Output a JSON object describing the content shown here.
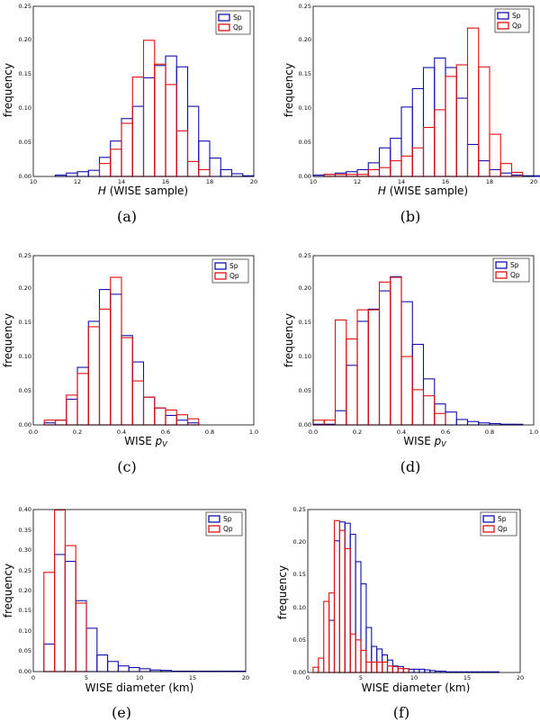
{
  "colors": {
    "sp": "#1010b0",
    "qp": "#e01010"
  },
  "charts": [
    {
      "panel": "(a)",
      "xlabel": "H (WISE sample)",
      "ylabel": "frequency",
      "legend": [
        "Sp",
        "Qp"
      ],
      "xticks": [
        "10",
        "12",
        "14",
        "16",
        "18",
        "20"
      ],
      "yticks": [
        "0.00",
        "0.05",
        "0.10",
        "0.15",
        "0.20",
        "0.25"
      ]
    },
    {
      "panel": "(b)",
      "xlabel": "H (WISE sample)",
      "ylabel": "frequency",
      "legend": [
        "Sp",
        "Qp"
      ],
      "xticks": [
        "10",
        "12",
        "14",
        "16",
        "18",
        "20"
      ],
      "yticks": [
        "0.00",
        "0.05",
        "0.10",
        "0.15",
        "0.20",
        "0.25"
      ]
    },
    {
      "panel": "(c)",
      "xlabel": "WISE pV",
      "ylabel": "frequency",
      "legend": [
        "Sp",
        "Qp"
      ],
      "xticks": [
        "0.0",
        "0.2",
        "0.4",
        "0.6",
        "0.8",
        "1.0"
      ],
      "yticks": [
        "0.00",
        "0.05",
        "0.10",
        "0.15",
        "0.20",
        "0.25"
      ]
    },
    {
      "panel": "(d)",
      "xlabel": "WISE pV",
      "ylabel": "frequency",
      "legend": [
        "Sp",
        "Qp"
      ],
      "xticks": [
        "0.0",
        "0.2",
        "0.4",
        "0.6",
        "0.8",
        "1.0"
      ],
      "yticks": [
        "0.00",
        "0.05",
        "0.10",
        "0.15",
        "0.20",
        "0.25"
      ]
    },
    {
      "panel": "(e)",
      "xlabel": "WISE diameter (km)",
      "ylabel": "frequency",
      "legend": [
        "Sp",
        "Qp"
      ],
      "xticks": [
        "0",
        "5",
        "10",
        "15",
        "20"
      ],
      "yticks": [
        "0.00",
        "0.05",
        "0.10",
        "0.15",
        "0.20",
        "0.25",
        "0.30",
        "0.35",
        "0.40"
      ]
    },
    {
      "panel": "(f)",
      "xlabel": "WISE diameter (km)",
      "ylabel": "frequency",
      "legend": [
        "Sp",
        "Qp"
      ],
      "xticks": [
        "0",
        "5",
        "10",
        "15",
        "20"
      ],
      "yticks": [
        "0.00",
        "0.05",
        "0.10",
        "0.15",
        "0.20",
        "0.25"
      ]
    }
  ],
  "chart_data": [
    {
      "type": "bar",
      "panel": "a",
      "bar_style": "step-outline",
      "xlabel": "H (WISE sample)",
      "ylabel": "frequency",
      "xlim": [
        10,
        20
      ],
      "ylim": [
        0,
        0.25
      ],
      "bin_width": 0.5,
      "series": [
        {
          "name": "Sp",
          "bin_start": 11.0,
          "values": [
            0.002,
            0.005,
            0.007,
            0.009,
            0.028,
            0.052,
            0.085,
            0.103,
            0.145,
            0.163,
            0.177,
            0.161,
            0.103,
            0.052,
            0.027,
            0.01,
            0.004,
            0.001
          ]
        },
        {
          "name": "Qp",
          "bin_start": 13.0,
          "values": [
            0.019,
            0.04,
            0.078,
            0.146,
            0.2,
            0.165,
            0.135,
            0.067,
            0.022,
            0.01
          ]
        }
      ]
    },
    {
      "type": "bar",
      "panel": "b",
      "bar_style": "step-outline",
      "xlabel": "H (WISE sample)",
      "ylabel": "frequency",
      "xlim": [
        10,
        20
      ],
      "ylim": [
        0,
        0.25
      ],
      "bin_width": 0.5,
      "series": [
        {
          "name": "Sp",
          "bin_start": 10.0,
          "values": [
            0.002,
            0.003,
            0.005,
            0.007,
            0.01,
            0.02,
            0.042,
            0.056,
            0.102,
            0.129,
            0.16,
            0.174,
            0.16,
            0.115,
            0.047,
            0.023,
            0.01,
            0.005,
            0.002,
            0.001,
            0.001,
            0.001,
            0.001,
            0.001,
            0.001,
            0.001,
            0.001,
            0.001,
            0.001,
            0.001
          ]
        },
        {
          "name": "Qp",
          "bin_start": 10.5,
          "values": [
            0.003,
            0.003,
            0.003,
            0.003,
            0.01,
            0.013,
            0.023,
            0.03,
            0.042,
            0.072,
            0.098,
            0.147,
            0.164,
            0.218,
            0.161,
            0.062,
            0.019,
            0.006
          ]
        }
      ]
    },
    {
      "type": "bar",
      "panel": "c",
      "bar_style": "step-outline",
      "xlabel": "WISE pV",
      "ylabel": "frequency",
      "xlim": [
        0,
        1
      ],
      "ylim": [
        0,
        0.25
      ],
      "bin_width": 0.05,
      "series": [
        {
          "name": "Sp",
          "bin_start": 0.05,
          "values": [
            0.003,
            0.007,
            0.038,
            0.085,
            0.153,
            0.2,
            0.193,
            0.132,
            0.093,
            0.041,
            0.025,
            0.014,
            0.007,
            0.003
          ]
        },
        {
          "name": "Qp",
          "bin_start": 0.05,
          "values": [
            0.007,
            0.007,
            0.044,
            0.076,
            0.145,
            0.171,
            0.218,
            0.129,
            0.065,
            0.041,
            0.025,
            0.022,
            0.015,
            0.009
          ]
        }
      ]
    },
    {
      "type": "bar",
      "panel": "d",
      "bar_style": "step-outline",
      "xlabel": "WISE pV",
      "ylabel": "frequency",
      "xlim": [
        0,
        1
      ],
      "ylim": [
        0,
        0.25
      ],
      "bin_width": 0.05,
      "series": [
        {
          "name": "Sp",
          "bin_start": 0.0,
          "values": [
            0.001,
            0.001,
            0.021,
            0.088,
            0.153,
            0.171,
            0.198,
            0.219,
            0.182,
            0.119,
            0.068,
            0.031,
            0.019,
            0.008,
            0.005,
            0.003,
            0.002,
            0.001,
            0.001
          ]
        },
        {
          "name": "Qp",
          "bin_start": 0.0,
          "values": [
            0.007,
            0.007,
            0.155,
            0.127,
            0.17,
            0.17,
            0.211,
            0.218,
            0.101,
            0.052,
            0.043,
            0.017
          ]
        }
      ]
    },
    {
      "type": "bar",
      "panel": "e",
      "bar_style": "step-outline",
      "xlabel": "WISE diameter (km)",
      "ylabel": "frequency",
      "xlim": [
        0,
        20
      ],
      "ylim": [
        0,
        0.4
      ],
      "bin_width": 1,
      "series": [
        {
          "name": "Sp",
          "bin_start": 1,
          "values": [
            0.068,
            0.289,
            0.272,
            0.175,
            0.107,
            0.041,
            0.025,
            0.014,
            0.01,
            0.007,
            0.004,
            0.003,
            0.001,
            0.001,
            0.001,
            0.001,
            0.001,
            0.001,
            0.001
          ]
        },
        {
          "name": "Qp",
          "bin_start": 1,
          "values": [
            0.245,
            0.399,
            0.311,
            0.169
          ]
        }
      ]
    },
    {
      "type": "bar",
      "panel": "f",
      "bar_style": "step-outline",
      "xlabel": "WISE diameter (km)",
      "ylabel": "frequency",
      "xlim": [
        0,
        20
      ],
      "ylim": [
        0,
        0.25
      ],
      "bin_width": 0.5,
      "series": [
        {
          "name": "Sp",
          "bin_start": 2.0,
          "values": [
            0.08,
            0.202,
            0.231,
            0.229,
            0.212,
            0.17,
            0.136,
            0.069,
            0.04,
            0.036,
            0.027,
            0.019,
            0.01,
            0.009,
            0.006,
            0.005,
            0.005,
            0.005,
            0.004,
            0.003,
            0.002,
            0.002,
            0.001,
            0.001,
            0.001,
            0.001,
            0.001,
            0.001,
            0.001,
            0.001,
            0.001,
            0.001
          ]
        },
        {
          "name": "Qp",
          "bin_start": 0.5,
          "values": [
            0.008,
            0.022,
            0.109,
            0.122,
            0.233,
            0.218,
            0.19,
            0.059,
            0.05,
            0.034,
            0.016,
            0.016,
            0.016,
            0.016,
            0.01,
            0.009,
            0.006,
            0.006
          ]
        }
      ]
    }
  ]
}
